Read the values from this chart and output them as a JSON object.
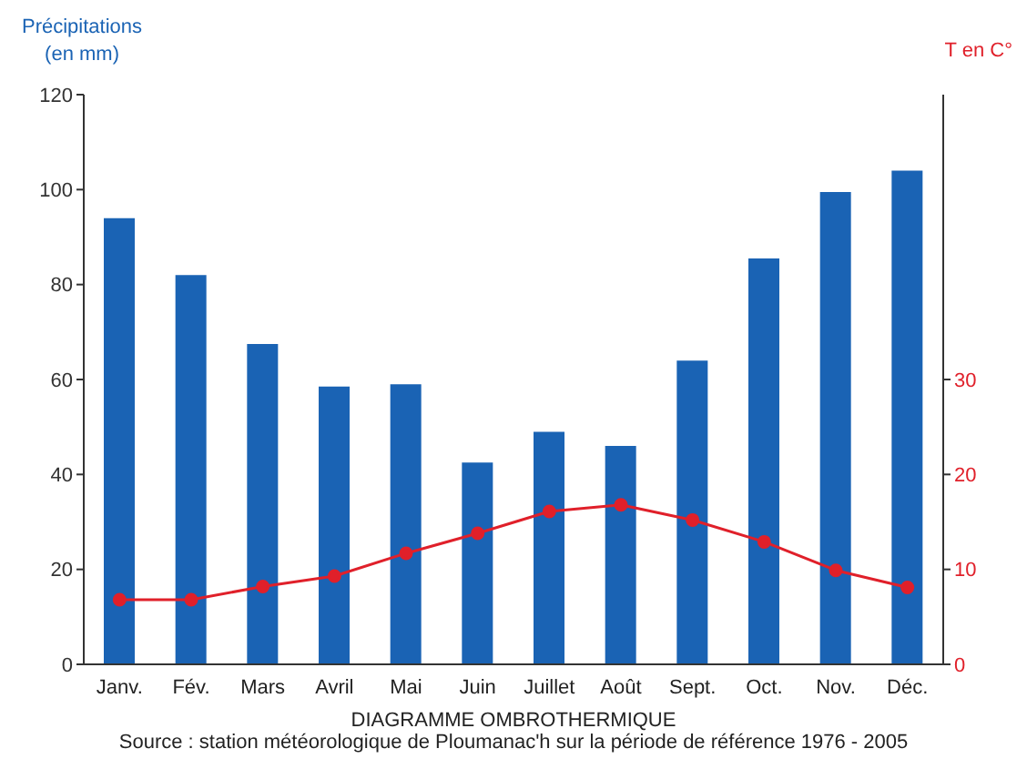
{
  "chart_data": {
    "type": "bar",
    "title": "DIAGRAMME OMBROTHERMIQUE",
    "ylabel": "Précipitations\n(en mm)",
    "y2label": "T en C°",
    "annotations": [
      "Source : station météorologique de Ploumanac'h sur la période de référence 1976 - 2005"
    ],
    "categories": [
      "Janv.",
      "Fév.",
      "Mars",
      "Avril",
      "Mai",
      "Juin",
      "Juillet",
      "Août",
      "Sept.",
      "Oct.",
      "Nov.",
      "Déc."
    ],
    "series": [
      {
        "color": "#1a63b4",
        "values": [
          94,
          82,
          67.5,
          58.5,
          59,
          42.5,
          49,
          46,
          64,
          85.5,
          99.5,
          104
        ]
      },
      {
        "type": "line",
        "axis": "y2",
        "color": "#e0202a",
        "marker": "circle",
        "values": [
          6.8,
          6.8,
          8.2,
          9.3,
          11.7,
          13.8,
          16.1,
          16.8,
          15.2,
          12.9,
          9.9,
          8.1
        ]
      }
    ],
    "ylim": [
      0,
      120
    ],
    "yticks": [
      0,
      20,
      40,
      60,
      80,
      100,
      120
    ],
    "y2lim": [
      0,
      60
    ],
    "y2ticks": [
      0,
      10,
      20,
      30
    ],
    "grid": false,
    "legend": false
  }
}
